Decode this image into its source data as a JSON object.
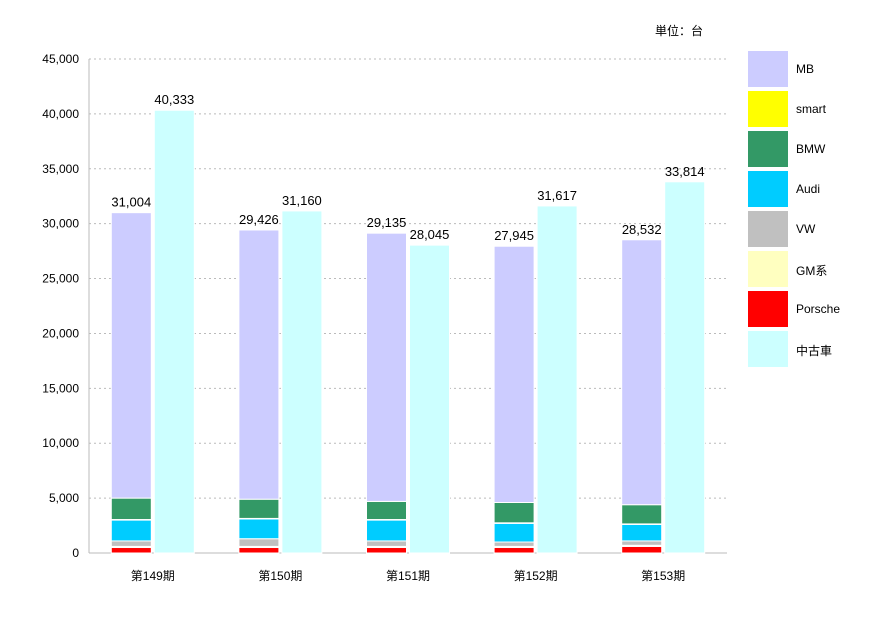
{
  "unit_note": "単位：台",
  "chart_data": {
    "type": "bar",
    "categories": [
      "第149期",
      "第150期",
      "第151期",
      "第152期",
      "第153期"
    ],
    "ylim": [
      0,
      45000
    ],
    "yticks": [
      0,
      5000,
      10000,
      15000,
      20000,
      25000,
      30000,
      35000,
      40000,
      45000
    ],
    "ytick_labels": [
      "0",
      "5,000",
      "10,000",
      "15,000",
      "20,000",
      "25,000",
      "30,000",
      "35,000",
      "40,000",
      "45,000"
    ],
    "grid": true,
    "legend_position": "right",
    "stacked_series": [
      {
        "name": "Porsche",
        "color": "#ff0000",
        "values": [
          500,
          500,
          500,
          500,
          600
        ]
      },
      {
        "name": "GM系",
        "color": "#ffffc0",
        "values": [
          100,
          100,
          100,
          100,
          100
        ]
      },
      {
        "name": "VW",
        "color": "#c0c0c0",
        "values": [
          500,
          700,
          500,
          400,
          400
        ]
      },
      {
        "name": "Audi",
        "color": "#00ccff",
        "values": [
          1900,
          1800,
          1900,
          1700,
          1500
        ]
      },
      {
        "name": "smart",
        "color": "#ffff00",
        "values": [
          50,
          50,
          50,
          50,
          50
        ]
      },
      {
        "name": "BMW",
        "color": "#339966",
        "values": [
          1950,
          1750,
          1650,
          1850,
          1750
        ]
      },
      {
        "name": "MB",
        "color": "#ccccff",
        "values": [
          26004,
          24526,
          24435,
          23345,
          24132
        ]
      }
    ],
    "stack_totals": [
      31004,
      29426,
      29135,
      27945,
      28532
    ],
    "stack_total_labels": [
      "31,004",
      "29,426",
      "29,135",
      "27,945",
      "28,532"
    ],
    "used_series": {
      "name": "中古車",
      "color": "#ccffff",
      "values": [
        40333,
        31160,
        28045,
        31617,
        33814
      ],
      "labels": [
        "40,333",
        "31,160",
        "28,045",
        "31,617",
        "33,814"
      ]
    }
  },
  "legend": [
    {
      "label": "MB",
      "color": "#ccccff"
    },
    {
      "label": "smart",
      "color": "#ffff00"
    },
    {
      "label": "BMW",
      "color": "#339966"
    },
    {
      "label": "Audi",
      "color": "#00ccff"
    },
    {
      "label": "VW",
      "color": "#c0c0c0"
    },
    {
      "label": "GM系",
      "color": "#ffffc0"
    },
    {
      "label": "Porsche",
      "color": "#ff0000"
    },
    {
      "label": "中古車",
      "color": "#ccffff"
    }
  ]
}
